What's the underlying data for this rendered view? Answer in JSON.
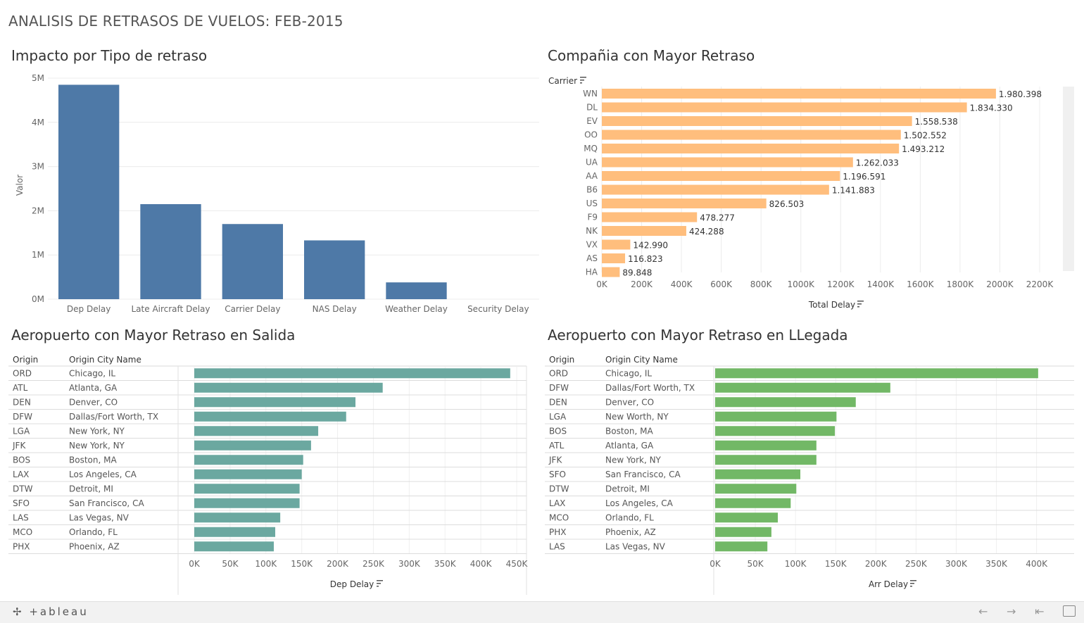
{
  "dashboard_title": "ANALISIS DE RETRASOS DE VUELOS: FEB-2015",
  "footer": {
    "logo_text": "+ableau",
    "nav_icons": [
      "back-arrow-icon",
      "forward-arrow-icon",
      "first-page-icon",
      "fullscreen-icon"
    ]
  },
  "colors": {
    "impact": "#4e79a7",
    "carrier": "#ffbe7d",
    "departure": "#6ba8a0",
    "arrival": "#72b866"
  },
  "chart_data": [
    {
      "id": "impact",
      "type": "bar",
      "title": "Impacto por Tipo de retraso",
      "ylabel": "Valor",
      "categories": [
        "Dep Delay",
        "Late Aircraft Delay",
        "Carrier Delay",
        "NAS Delay",
        "Weather Delay",
        "Security Delay"
      ],
      "values": [
        4850000,
        2150000,
        1700000,
        1330000,
        380000,
        0
      ],
      "ylim": [
        0,
        5000000
      ],
      "yticks": [
        0,
        1000000,
        2000000,
        3000000,
        4000000,
        5000000
      ],
      "ytick_labels": [
        "0M",
        "1M",
        "2M",
        "3M",
        "4M",
        "5M"
      ],
      "grid": true
    },
    {
      "id": "carrier",
      "type": "bar",
      "orientation": "horizontal",
      "title": "Compañia con Mayor Retraso",
      "row_header": "Carrier",
      "xlabel": "Total Delay",
      "categories": [
        "WN",
        "DL",
        "EV",
        "OO",
        "MQ",
        "UA",
        "AA",
        "B6",
        "US",
        "F9",
        "NK",
        "VX",
        "AS",
        "HA"
      ],
      "values": [
        1980398,
        1834330,
        1558538,
        1502552,
        1493212,
        1262033,
        1196591,
        1141883,
        826503,
        478277,
        424288,
        142990,
        116823,
        89848
      ],
      "value_labels": [
        "1.980.398",
        "1.834.330",
        "1.558.538",
        "1.502.552",
        "1.493.212",
        "1.262.033",
        "1.196.591",
        "1.141.883",
        "826.503",
        "478.277",
        "424.288",
        "142.990",
        "116.823",
        "89.848"
      ],
      "xlim": [
        0,
        2200000
      ],
      "xticks": [
        0,
        200000,
        400000,
        600000,
        800000,
        1000000,
        1200000,
        1400000,
        1600000,
        1800000,
        2000000,
        2200000
      ],
      "xtick_labels": [
        "0K",
        "200K",
        "400K",
        "600K",
        "800K",
        "1000K",
        "1200K",
        "1400K",
        "1600K",
        "1800K",
        "2000K",
        "2200K"
      ]
    },
    {
      "id": "departure",
      "type": "bar",
      "orientation": "horizontal",
      "title": "Aeropuerto con Mayor Retraso en Salida",
      "col_headers": [
        "Origin",
        "Origin City Name"
      ],
      "xlabel": "Dep Delay",
      "rows": [
        {
          "origin": "ORD",
          "city": "Chicago, IL",
          "value": 441000
        },
        {
          "origin": "ATL",
          "city": "Atlanta, GA",
          "value": 263000
        },
        {
          "origin": "DEN",
          "city": "Denver, CO",
          "value": 225000
        },
        {
          "origin": "DFW",
          "city": "Dallas/Fort Worth, TX",
          "value": 212000
        },
        {
          "origin": "LGA",
          "city": "New York, NY",
          "value": 173000
        },
        {
          "origin": "JFK",
          "city": "New York, NY",
          "value": 163000
        },
        {
          "origin": "BOS",
          "city": "Boston, MA",
          "value": 152000
        },
        {
          "origin": "LAX",
          "city": "Los Angeles, CA",
          "value": 150000
        },
        {
          "origin": "DTW",
          "city": "Detroit, MI",
          "value": 147000
        },
        {
          "origin": "SFO",
          "city": "San Francisco, CA",
          "value": 147000
        },
        {
          "origin": "LAS",
          "city": "Las Vegas, NV",
          "value": 120000
        },
        {
          "origin": "MCO",
          "city": "Orlando, FL",
          "value": 113000
        },
        {
          "origin": "PHX",
          "city": "Phoenix, AZ",
          "value": 111000
        }
      ],
      "xlim": [
        0,
        450000
      ],
      "xticks": [
        0,
        50000,
        100000,
        150000,
        200000,
        250000,
        300000,
        350000,
        400000,
        450000
      ],
      "xtick_labels": [
        "0K",
        "50K",
        "100K",
        "150K",
        "200K",
        "250K",
        "300K",
        "350K",
        "400K",
        "450K"
      ]
    },
    {
      "id": "arrival",
      "type": "bar",
      "orientation": "horizontal",
      "title": "Aeropuerto con Mayor Retraso en LLegada",
      "col_headers": [
        "Origin",
        "Origin City Name"
      ],
      "xlabel": "Arr Delay",
      "rows": [
        {
          "origin": "ORD",
          "city": "Chicago, IL",
          "value": 402000
        },
        {
          "origin": "DFW",
          "city": "Dallas/Fort Worth, TX",
          "value": 218000
        },
        {
          "origin": "DEN",
          "city": "Denver, CO",
          "value": 175000
        },
        {
          "origin": "LGA",
          "city": "New Worth, NY",
          "value": 151000
        },
        {
          "origin": "BOS",
          "city": "Boston, MA",
          "value": 149000
        },
        {
          "origin": "ATL",
          "city": "Atlanta, GA",
          "value": 126000
        },
        {
          "origin": "JFK",
          "city": "New York, NY",
          "value": 126000
        },
        {
          "origin": "SFO",
          "city": "San Francisco, CA",
          "value": 106000
        },
        {
          "origin": "DTW",
          "city": "Detroit, MI",
          "value": 101000
        },
        {
          "origin": "LAX",
          "city": "Los Angeles, CA",
          "value": 94000
        },
        {
          "origin": "MCO",
          "city": "Orlando, FL",
          "value": 78000
        },
        {
          "origin": "PHX",
          "city": "Phoenix, AZ",
          "value": 70000
        },
        {
          "origin": "LAS",
          "city": "Las Vegas, NV",
          "value": 65000
        }
      ],
      "xlim": [
        0,
        410000
      ],
      "xticks": [
        0,
        50000,
        100000,
        150000,
        200000,
        250000,
        300000,
        350000,
        400000
      ],
      "xtick_labels": [
        "0K",
        "50K",
        "100K",
        "150K",
        "200K",
        "250K",
        "300K",
        "350K",
        "400K"
      ]
    }
  ]
}
